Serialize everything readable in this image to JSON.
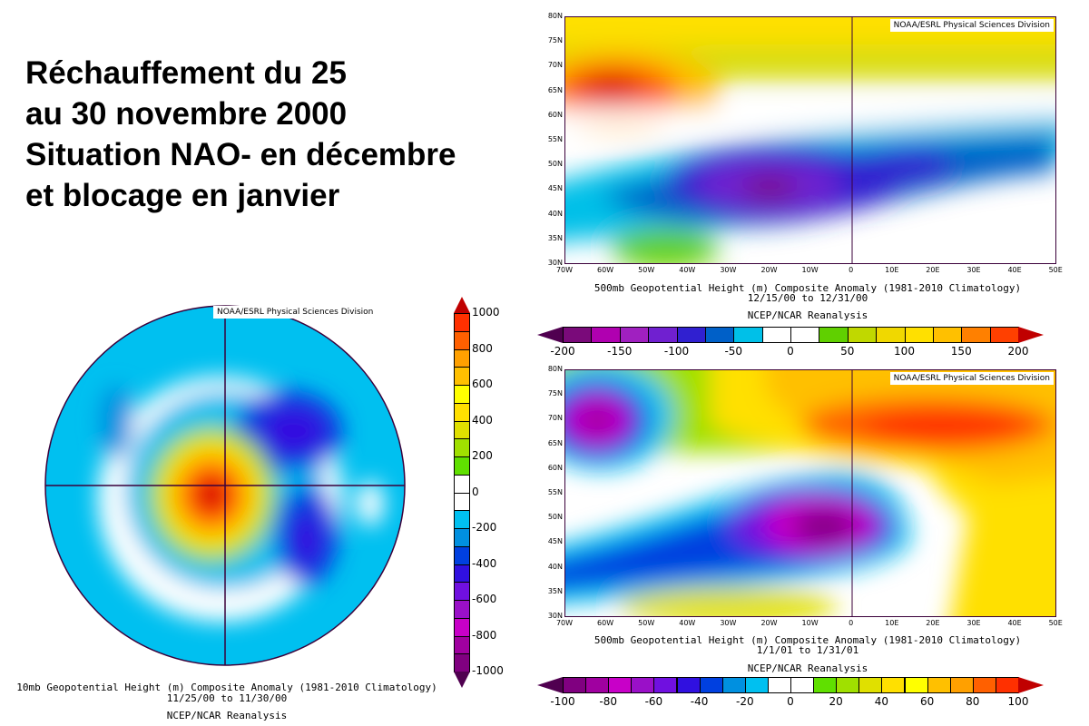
{
  "title_lines": [
    "Réchauffement du 25",
    "au 30 novembre 2000",
    "Situation NAO- en décembre",
    "et blocage en janvier"
  ],
  "credit": "NOAA/ESRL Physical Sciences Division",
  "maps": {
    "polar": {
      "caption": "10mb Geopotential Height (m) Composite Anomaly (1981-2010 Climatology)",
      "dates": "11/25/00  to 11/30/00",
      "source": "NCEP/NCAR Reanalysis",
      "colorbar": {
        "ticks": [
          "1000",
          "800",
          "600",
          "400",
          "200",
          "0",
          "-200",
          "-400",
          "-600",
          "-800",
          "-1000"
        ],
        "colors": [
          "#ff3000",
          "#ff6000",
          "#ffa000",
          "#ffc000",
          "#ffff00",
          "#ffe000",
          "#e0e000",
          "#a0e000",
          "#60e000",
          "#ffffff",
          "#ffffff",
          "#00c0f0",
          "#0090e0",
          "#0040e0",
          "#3010e0",
          "#7010e0",
          "#9a10c8",
          "#c800c8",
          "#a000a0",
          "#800080"
        ],
        "arrow_low": "#500050",
        "arrow_high": "#c00000"
      }
    },
    "december": {
      "caption": "500mb Geopotential Height (m) Composite Anomaly (1981-2010 Climatology)",
      "dates": "12/15/00  to 12/31/00",
      "source": "NCEP/NCAR Reanalysis",
      "lat_labels": [
        "80N",
        "75N",
        "70N",
        "65N",
        "60N",
        "55N",
        "50N",
        "45N",
        "40N",
        "35N",
        "30N"
      ],
      "lon_labels": [
        "70W",
        "60W",
        "50W",
        "40W",
        "30W",
        "20W",
        "10W",
        "0",
        "10E",
        "20E",
        "30E",
        "40E",
        "50E"
      ],
      "colorbar": {
        "ticks": [
          "-200",
          "-150",
          "-100",
          "-50",
          "0",
          "50",
          "100",
          "150",
          "200"
        ],
        "colors": [
          "#7a0a7a",
          "#b000b0",
          "#a020c0",
          "#7020d0",
          "#3020d0",
          "#0060c8",
          "#00c0e8",
          "#ffffff",
          "#ffffff",
          "#60d000",
          "#c0d800",
          "#f0d800",
          "#ffe000",
          "#ffc000",
          "#ff8000",
          "#ff4000"
        ],
        "arrow_low": "#500050",
        "arrow_high": "#c00000"
      }
    },
    "january": {
      "caption": "500mb Geopotential Height (m) Composite Anomaly (1981-2010 Climatology)",
      "dates": "1/1/01  to 1/31/01",
      "source": "NCEP/NCAR Reanalysis",
      "lat_labels": [
        "80N",
        "75N",
        "70N",
        "65N",
        "60N",
        "55N",
        "50N",
        "45N",
        "40N",
        "35N",
        "30N"
      ],
      "lon_labels": [
        "70W",
        "60W",
        "50W",
        "40W",
        "30W",
        "20W",
        "10W",
        "0",
        "10E",
        "20E",
        "30E",
        "40E",
        "50E"
      ],
      "colorbar": {
        "ticks": [
          "-100",
          "-80",
          "-60",
          "-40",
          "-20",
          "0",
          "20",
          "40",
          "60",
          "80",
          "100"
        ],
        "colors": [
          "#800080",
          "#a000a0",
          "#c800c8",
          "#9a10c8",
          "#7010e0",
          "#3010e0",
          "#0040e0",
          "#0090e0",
          "#00c0f0",
          "#ffffff",
          "#ffffff",
          "#60e000",
          "#a0e000",
          "#e0e000",
          "#ffe000",
          "#ffff00",
          "#ffc000",
          "#ffa000",
          "#ff6000",
          "#ff3000"
        ],
        "arrow_low": "#500050",
        "arrow_high": "#c00000"
      }
    }
  }
}
